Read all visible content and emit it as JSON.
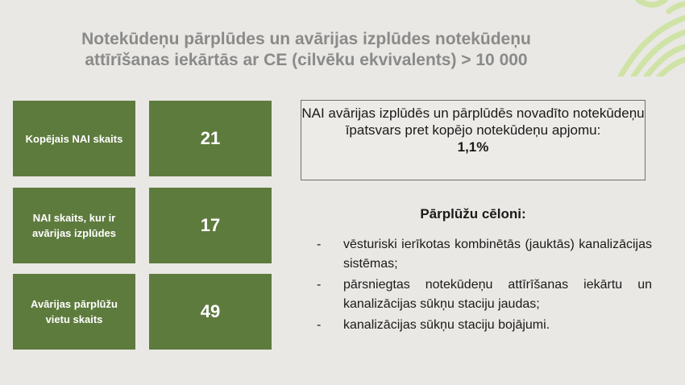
{
  "title": {
    "line1": "Notekūdeņu pārplūdes un avārijas izplūdes notekūdeņu",
    "line2": "attīrīšanas iekārtās ar CE (cilvēku ekvivalents) > 10 000"
  },
  "stats": [
    {
      "label": "Kopējais NAI skaits",
      "value": "21"
    },
    {
      "label": "NAI skaits, kur ir avārijas izplūdes",
      "value": "17"
    },
    {
      "label": "Avārijas pārplūžu vietu skaits",
      "value": "49"
    }
  ],
  "share": {
    "text": "NAI avārijas izplūdēs un pārplūdēs novadīto notekūdeņu īpatsvars pret kopējo notekūdeņu apjomu:",
    "value": "1,1%"
  },
  "causes": {
    "heading": "Pārplūžu cēloni:",
    "bullet": "-",
    "items": [
      "vēsturiski ierīkotas kombinētās (jauktās) kanalizācijas sistēmas;",
      "pārsniegtas notekūdeņu attīrīšanas iekārtu un kanalizācijas sūkņu staciju jaudas;",
      "kanalizācijas sūkņu staciju bojājumi."
    ]
  },
  "colors": {
    "background": "#e9e8e4",
    "box_green": "#5e7b3e",
    "title_gray": "#8a8a8a",
    "deco_green": "#cfe3a6"
  }
}
